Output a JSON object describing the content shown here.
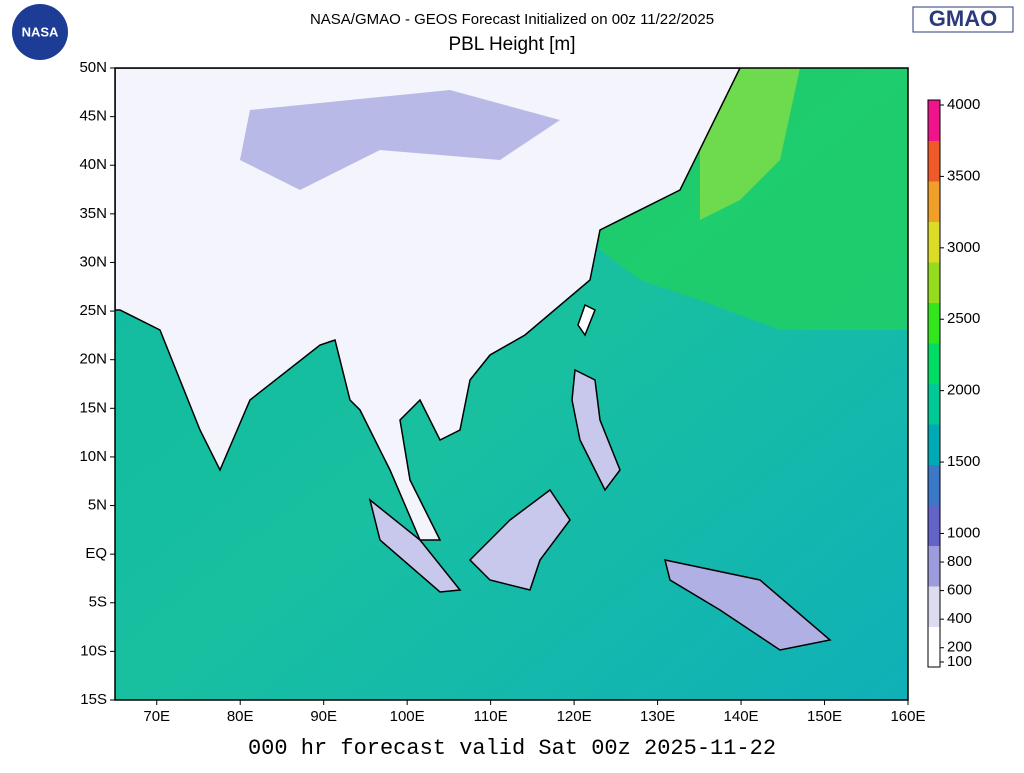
{
  "header": {
    "title": "NASA/GMAO - GEOS Forecast Initialized on 00z 11/22/2025",
    "subtitle": "PBL Height [m]"
  },
  "logos": {
    "nasa": "NASA",
    "gmao": "GMAO"
  },
  "map": {
    "lon_range": [
      65,
      160
    ],
    "lat_range": [
      -15,
      50
    ],
    "lon_ticks": [
      {
        "value": 70,
        "label": "70E"
      },
      {
        "value": 80,
        "label": "80E"
      },
      {
        "value": 90,
        "label": "90E"
      },
      {
        "value": 100,
        "label": "100E"
      },
      {
        "value": 110,
        "label": "110E"
      },
      {
        "value": 120,
        "label": "120E"
      },
      {
        "value": 130,
        "label": "130E"
      },
      {
        "value": 140,
        "label": "140E"
      },
      {
        "value": 150,
        "label": "150E"
      },
      {
        "value": 160,
        "label": "160E"
      }
    ],
    "lat_ticks": [
      {
        "value": 50,
        "label": "50N"
      },
      {
        "value": 45,
        "label": "45N"
      },
      {
        "value": 40,
        "label": "40N"
      },
      {
        "value": 35,
        "label": "35N"
      },
      {
        "value": 30,
        "label": "30N"
      },
      {
        "value": 25,
        "label": "25N"
      },
      {
        "value": 20,
        "label": "20N"
      },
      {
        "value": 15,
        "label": "15N"
      },
      {
        "value": 10,
        "label": "10N"
      },
      {
        "value": 5,
        "label": "5N"
      },
      {
        "value": 0,
        "label": "EQ"
      },
      {
        "value": -5,
        "label": "5S"
      },
      {
        "value": -10,
        "label": "10S"
      },
      {
        "value": -15,
        "label": "15S"
      }
    ]
  },
  "colorbar": {
    "range": [
      65,
      4035
    ],
    "ticks": [
      100,
      200,
      400,
      600,
      800,
      1000,
      1500,
      2000,
      2500,
      3000,
      3500,
      4000
    ],
    "colors": [
      "#ffffff",
      "#dcdcf0",
      "#9c9cdc",
      "#6464c8",
      "#3c78c8",
      "#00aab4",
      "#00c896",
      "#00dc64",
      "#32e61e",
      "#96dc1e",
      "#dcdc28",
      "#f0a028",
      "#f05a28",
      "#f0148c"
    ]
  },
  "footer": "000 hr forecast valid Sat 00z 2025-11-22"
}
